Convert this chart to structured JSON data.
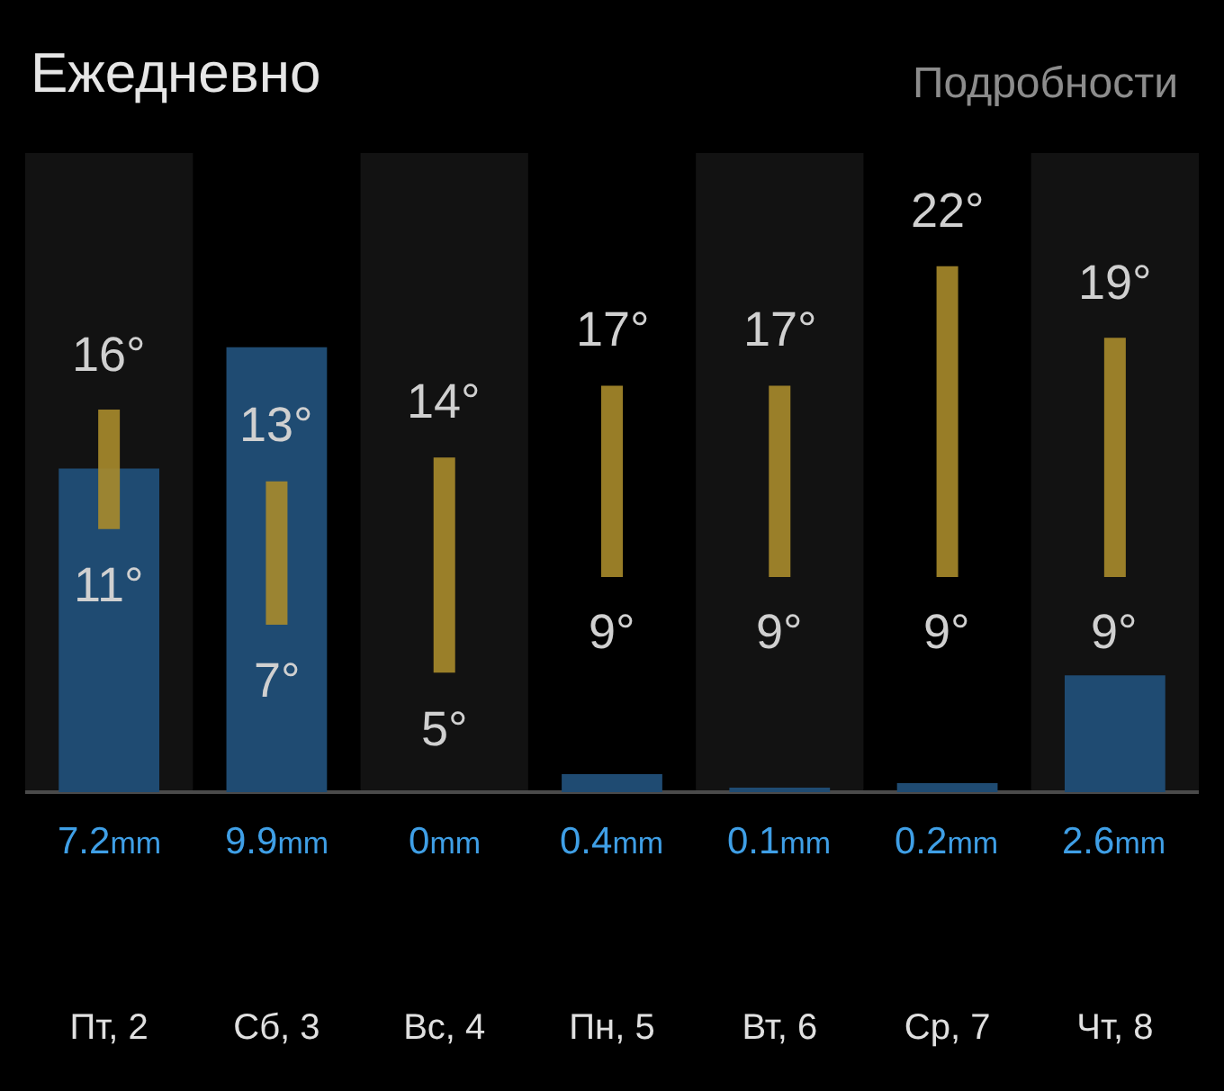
{
  "chart_data": {
    "type": "bar",
    "title": "Ежедневно",
    "categories": [
      "Пт, 2",
      "Сб, 3",
      "Вс, 4",
      "Пн, 5",
      "Вт, 6",
      "Ср, 7",
      "Чт, 8"
    ],
    "series": [
      {
        "color": "#1f4b72",
        "values": [
          7.2,
          9.9,
          0,
          0.4,
          0.1,
          0.2,
          2.6
        ],
        "value_labels": [
          "7.2mm",
          "9.9mm",
          "0mm",
          "0.4mm",
          "0.1mm",
          "0.2mm",
          "2.6mm"
        ]
      },
      {
        "type": "line",
        "color": "#a98b2c",
        "axis": "y2",
        "x": [
          "Пт, 2",
          "Пт, 2"
        ],
        "values": [
          11,
          16
        ],
        "value_labels": [
          "11°",
          "16°"
        ]
      },
      {
        "type": "line",
        "color": "#a98b2c",
        "axis": "y2",
        "x": [
          "Сб, 3",
          "Сб, 3"
        ],
        "values": [
          7,
          13
        ],
        "value_labels": [
          "7°",
          "13°"
        ]
      },
      {
        "type": "line",
        "color": "#a98b2c",
        "axis": "y2",
        "x": [
          "Вс, 4",
          "Вс, 4"
        ],
        "values": [
          5,
          14
        ],
        "value_labels": [
          "5°",
          "14°"
        ]
      },
      {
        "type": "line",
        "color": "#a98b2c",
        "axis": "y2",
        "x": [
          "Пн, 5",
          "Пн, 5"
        ],
        "values": [
          9,
          17
        ],
        "value_labels": [
          "9°",
          "17°"
        ]
      },
      {
        "type": "line",
        "color": "#a98b2c",
        "axis": "y2",
        "x": [
          "Вт, 6",
          "Вт, 6"
        ],
        "values": [
          9,
          17
        ],
        "value_labels": [
          "9°",
          "17°"
        ]
      },
      {
        "type": "line",
        "color": "#a98b2c",
        "axis": "y2",
        "x": [
          "Ср, 7",
          "Ср, 7"
        ],
        "values": [
          9,
          22
        ],
        "value_labels": [
          "9°",
          "22°"
        ]
      },
      {
        "type": "line",
        "color": "#a98b2c",
        "axis": "y2",
        "x": [
          "Чт, 8",
          "Чт, 8"
        ],
        "values": [
          9,
          19
        ],
        "value_labels": [
          "9°",
          "19°"
        ]
      }
    ],
    "tick_labels": "x",
    "bands": [
      {
        "axis": "x",
        "from": "Пт, 2",
        "to": "Пт, 2",
        "color": "#121212"
      },
      {
        "axis": "x",
        "from": "Вс, 4",
        "to": "Вс, 4",
        "color": "#121212"
      },
      {
        "axis": "x",
        "from": "Вт, 6",
        "to": "Вт, 6",
        "color": "#121212"
      },
      {
        "axis": "x",
        "from": "Чт, 8",
        "to": "Чт, 8",
        "color": "#121212"
      }
    ],
    "annotations": [
      "Подробности"
    ]
  }
}
